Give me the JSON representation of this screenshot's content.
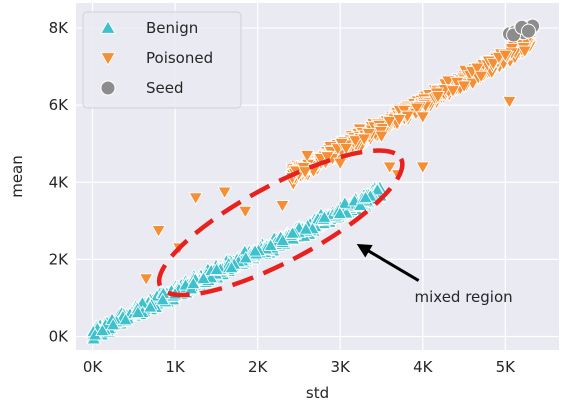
{
  "chart_data": {
    "type": "scatter",
    "xlabel": "std",
    "ylabel": "mean",
    "xlim": [
      -200,
      5650
    ],
    "ylim": [
      -350,
      8650
    ],
    "xticks": [
      0,
      1000,
      2000,
      3000,
      4000,
      5000
    ],
    "xtick_labels": [
      "0K",
      "1K",
      "2K",
      "3K",
      "4K",
      "5K"
    ],
    "yticks": [
      0,
      2000,
      4000,
      6000,
      8000
    ],
    "ytick_labels": [
      "0K",
      "2K",
      "4K",
      "6K",
      "8K"
    ],
    "grid": true,
    "legend_position": "top-left",
    "colors": {
      "background": "#EAEAF2",
      "grid": "#FFFFFF",
      "benign": "#3EC1CD",
      "poisoned": "#F58F36",
      "seed": "#8C8C8C",
      "ellipse": "#E8211F"
    },
    "series": [
      {
        "name": "Benign",
        "marker": "triangle-up",
        "band": {
          "x": [
            0,
            3500
          ],
          "slope": 1.05,
          "intercept": 80,
          "spread": 260
        },
        "points": [
          [
            30,
            40
          ],
          [
            120,
            150
          ],
          [
            250,
            300
          ],
          [
            400,
            430
          ],
          [
            550,
            620
          ],
          [
            700,
            760
          ],
          [
            850,
            950
          ],
          [
            1000,
            1100
          ],
          [
            1200,
            1300
          ],
          [
            1400,
            1500
          ],
          [
            1600,
            1750
          ],
          [
            1800,
            1950
          ],
          [
            2000,
            2150
          ],
          [
            2200,
            2400
          ],
          [
            2400,
            2550
          ],
          [
            2600,
            2800
          ],
          [
            2800,
            3000
          ],
          [
            3000,
            3200
          ],
          [
            3200,
            3450
          ],
          [
            3400,
            3650
          ],
          [
            3450,
            3800
          ]
        ]
      },
      {
        "name": "Poisoned",
        "marker": "triangle-down",
        "band": {
          "x": [
            2400,
            5300
          ],
          "slope": 1.2,
          "intercept": 1250,
          "spread": 300
        },
        "points": [
          [
            650,
            1500
          ],
          [
            800,
            2750
          ],
          [
            1050,
            2300
          ],
          [
            1250,
            3600
          ],
          [
            1600,
            3750
          ],
          [
            1850,
            3250
          ],
          [
            2300,
            3400
          ],
          [
            2600,
            4700
          ],
          [
            3000,
            4500
          ],
          [
            3500,
            5200
          ],
          [
            4000,
            5700
          ],
          [
            4500,
            6500
          ],
          [
            5000,
            7300
          ],
          [
            5050,
            6100
          ],
          [
            5300,
            7800
          ],
          [
            3600,
            4400
          ],
          [
            4000,
            4400
          ],
          [
            3700,
            4200
          ]
        ]
      },
      {
        "name": "Seed",
        "marker": "circle",
        "points": [
          [
            5050,
            7850
          ],
          [
            5120,
            7900
          ],
          [
            5180,
            7950
          ],
          [
            5220,
            7880
          ],
          [
            5250,
            8000
          ],
          [
            5300,
            7980
          ],
          [
            5330,
            8050
          ],
          [
            5100,
            7820
          ],
          [
            5200,
            8020
          ],
          [
            5280,
            7920
          ]
        ]
      }
    ],
    "annotations": [
      {
        "type": "ellipse",
        "center": [
          2280,
          2950
        ],
        "rx": 1650,
        "ry": 430,
        "angle_deg": 28
      },
      {
        "type": "arrow",
        "text": "mixed region",
        "from": [
          3950,
          1450
        ],
        "to": [
          3200,
          2400
        ],
        "text_at": [
          3900,
          900
        ]
      }
    ]
  }
}
